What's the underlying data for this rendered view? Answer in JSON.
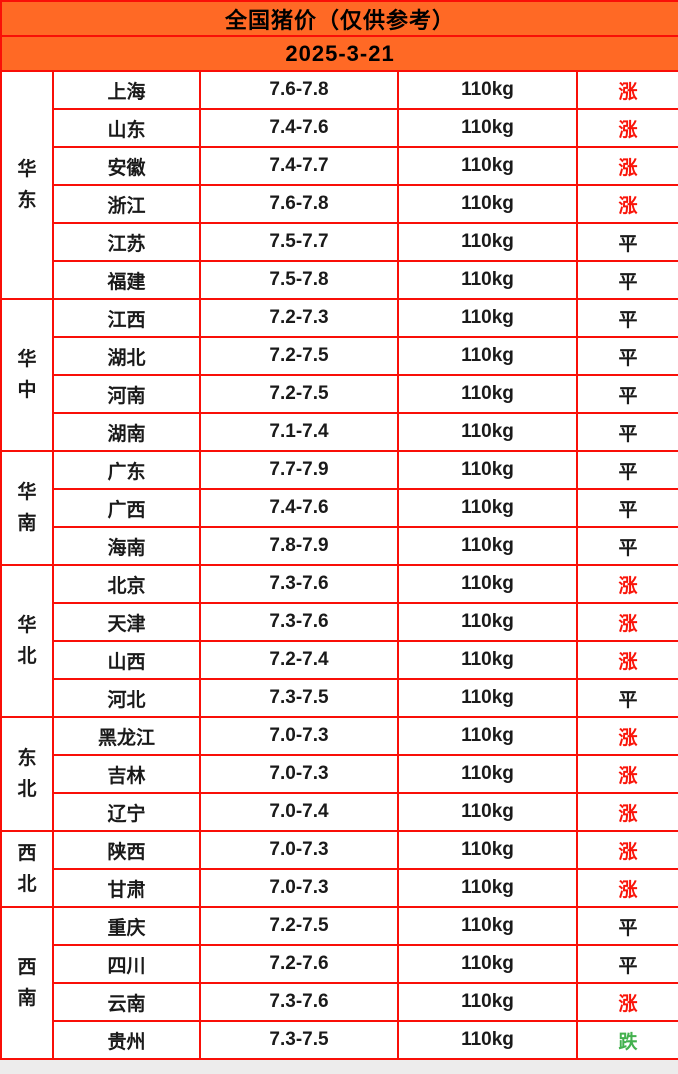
{
  "chart_data": {
    "type": "table",
    "title": "全国猪价（仅供参考）",
    "date": "2025-3-21",
    "weight_label": "110kg",
    "trend_values": {
      "up": "涨",
      "flat": "平",
      "down": "跌"
    },
    "regions": [
      {
        "name": "华东",
        "rows": [
          {
            "province": "上海",
            "price": "7.6-7.8",
            "weight": "110kg",
            "trend": "涨",
            "dir": "up"
          },
          {
            "province": "山东",
            "price": "7.4-7.6",
            "weight": "110kg",
            "trend": "涨",
            "dir": "up"
          },
          {
            "province": "安徽",
            "price": "7.4-7.7",
            "weight": "110kg",
            "trend": "涨",
            "dir": "up"
          },
          {
            "province": "浙江",
            "price": "7.6-7.8",
            "weight": "110kg",
            "trend": "涨",
            "dir": "up"
          },
          {
            "province": "江苏",
            "price": "7.5-7.7",
            "weight": "110kg",
            "trend": "平",
            "dir": "flat"
          },
          {
            "province": "福建",
            "price": "7.5-7.8",
            "weight": "110kg",
            "trend": "平",
            "dir": "flat"
          }
        ]
      },
      {
        "name": "华中",
        "rows": [
          {
            "province": "江西",
            "price": "7.2-7.3",
            "weight": "110kg",
            "trend": "平",
            "dir": "flat"
          },
          {
            "province": "湖北",
            "price": "7.2-7.5",
            "weight": "110kg",
            "trend": "平",
            "dir": "flat"
          },
          {
            "province": "河南",
            "price": "7.2-7.5",
            "weight": "110kg",
            "trend": "平",
            "dir": "flat"
          },
          {
            "province": "湖南",
            "price": "7.1-7.4",
            "weight": "110kg",
            "trend": "平",
            "dir": "flat"
          }
        ]
      },
      {
        "name": "华南",
        "rows": [
          {
            "province": "广东",
            "price": "7.7-7.9",
            "weight": "110kg",
            "trend": "平",
            "dir": "flat"
          },
          {
            "province": "广西",
            "price": "7.4-7.6",
            "weight": "110kg",
            "trend": "平",
            "dir": "flat"
          },
          {
            "province": "海南",
            "price": "7.8-7.9",
            "weight": "110kg",
            "trend": "平",
            "dir": "flat"
          }
        ]
      },
      {
        "name": "华北",
        "rows": [
          {
            "province": "北京",
            "price": "7.3-7.6",
            "weight": "110kg",
            "trend": "涨",
            "dir": "up"
          },
          {
            "province": "天津",
            "price": "7.3-7.6",
            "weight": "110kg",
            "trend": "涨",
            "dir": "up"
          },
          {
            "province": "山西",
            "price": "7.2-7.4",
            "weight": "110kg",
            "trend": "涨",
            "dir": "up"
          },
          {
            "province": "河北",
            "price": "7.3-7.5",
            "weight": "110kg",
            "trend": "平",
            "dir": "flat"
          }
        ]
      },
      {
        "name": "东北",
        "rows": [
          {
            "province": "黑龙江",
            "price": "7.0-7.3",
            "weight": "110kg",
            "trend": "涨",
            "dir": "up"
          },
          {
            "province": "吉林",
            "price": "7.0-7.3",
            "weight": "110kg",
            "trend": "涨",
            "dir": "up"
          },
          {
            "province": "辽宁",
            "price": "7.0-7.4",
            "weight": "110kg",
            "trend": "涨",
            "dir": "up"
          }
        ]
      },
      {
        "name": "西北",
        "rows": [
          {
            "province": "陕西",
            "price": "7.0-7.3",
            "weight": "110kg",
            "trend": "涨",
            "dir": "up"
          },
          {
            "province": "甘肃",
            "price": "7.0-7.3",
            "weight": "110kg",
            "trend": "涨",
            "dir": "up"
          }
        ]
      },
      {
        "name": "西南",
        "rows": [
          {
            "province": "重庆",
            "price": "7.2-7.5",
            "weight": "110kg",
            "trend": "平",
            "dir": "flat"
          },
          {
            "province": "四川",
            "price": "7.2-7.6",
            "weight": "110kg",
            "trend": "平",
            "dir": "flat"
          },
          {
            "province": "云南",
            "price": "7.3-7.6",
            "weight": "110kg",
            "trend": "涨",
            "dir": "up"
          },
          {
            "province": "贵州",
            "price": "7.3-7.5",
            "weight": "110kg",
            "trend": "跌",
            "dir": "down"
          }
        ]
      }
    ]
  },
  "colors": {
    "header_orange": "#FF6925",
    "border_red": "#F90F08",
    "trend_up_red": "#FA1409",
    "trend_flat_black": "#1A1A1A",
    "trend_down_green": "#43B14E"
  }
}
